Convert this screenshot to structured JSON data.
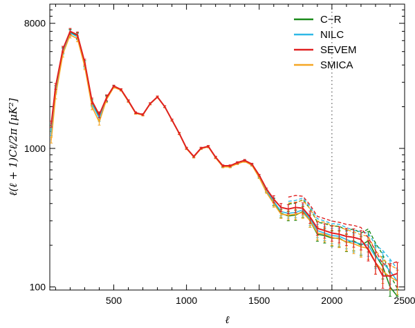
{
  "chart_data": {
    "type": "line",
    "title": "",
    "xlabel": "ℓ",
    "ylabel": "ℓ(ℓ + 1)Cℓ/2π   [μK²]",
    "xlim": [
      60,
      2500
    ],
    "ylim": [
      95,
      11000
    ],
    "y_scale": "log",
    "x_ticks": [
      500,
      1000,
      1500,
      2000,
      2500
    ],
    "y_ticks": [
      100,
      1000,
      8000
    ],
    "legend_position": "top-right",
    "vertical_marker_x": 2000,
    "colors": {
      "C-R": "#1a8a1a",
      "NILC": "#2eb8e6",
      "SEVEM": "#e02020",
      "SMICA": "#f5a623"
    },
    "series": [
      {
        "name": "C−R",
        "x": [
          70,
          100,
          150,
          200,
          250,
          300,
          350,
          400,
          450,
          500,
          550,
          600,
          650,
          700,
          750,
          800,
          850,
          900,
          950,
          1000,
          1050,
          1100,
          1150,
          1200,
          1250,
          1300,
          1350,
          1400,
          1450,
          1500,
          1550,
          1600,
          1650,
          1700,
          1750,
          1800,
          1850,
          1900,
          1950,
          2000,
          2050,
          2100,
          2150,
          2200,
          2250,
          2300,
          2350,
          2400,
          2450
        ],
        "y": [
          1400,
          2700,
          5100,
          6900,
          6500,
          4100,
          2150,
          1700,
          2300,
          2800,
          2650,
          2200,
          1800,
          1750,
          2100,
          2350,
          2000,
          1600,
          1280,
          1000,
          870,
          1000,
          1030,
          860,
          740,
          740,
          780,
          810,
          760,
          620,
          490,
          410,
          340,
          325,
          330,
          350,
          300,
          240,
          235,
          225,
          225,
          210,
          215,
          200,
          215,
          170,
          140,
          100,
          80
        ]
      },
      {
        "name": "NILC",
        "x": [
          70,
          100,
          150,
          200,
          250,
          300,
          350,
          400,
          450,
          500,
          550,
          600,
          650,
          700,
          750,
          800,
          850,
          900,
          950,
          1000,
          1050,
          1100,
          1150,
          1200,
          1250,
          1300,
          1350,
          1400,
          1450,
          1500,
          1550,
          1600,
          1650,
          1700,
          1750,
          1800,
          1850,
          1900,
          1950,
          2000,
          2050,
          2100,
          2150,
          2200,
          2250,
          2300,
          2350,
          2400,
          2450
        ],
        "y": [
          1300,
          2600,
          5000,
          6800,
          6400,
          4000,
          2100,
          1650,
          2280,
          2780,
          2640,
          2190,
          1800,
          1745,
          2095,
          2345,
          2000,
          1600,
          1280,
          1000,
          870,
          1000,
          1030,
          860,
          745,
          745,
          785,
          815,
          765,
          625,
          495,
          415,
          350,
          340,
          345,
          360,
          310,
          255,
          245,
          235,
          232,
          220,
          210,
          205,
          200,
          165,
          150,
          130,
          110
        ]
      },
      {
        "name": "SEVEM",
        "x": [
          70,
          100,
          150,
          200,
          250,
          300,
          350,
          400,
          450,
          500,
          550,
          600,
          650,
          700,
          750,
          800,
          850,
          900,
          950,
          1000,
          1050,
          1100,
          1150,
          1200,
          1250,
          1300,
          1350,
          1400,
          1450,
          1500,
          1550,
          1600,
          1650,
          1700,
          1750,
          1800,
          1850,
          1900,
          1950,
          2000,
          2050,
          2100,
          2150,
          2200,
          2250,
          2300,
          2350,
          2400,
          2450
        ],
        "y": [
          1500,
          2800,
          5200,
          7000,
          6600,
          4200,
          2200,
          1750,
          2320,
          2820,
          2660,
          2210,
          1810,
          1755,
          2105,
          2355,
          2005,
          1605,
          1285,
          1005,
          875,
          1005,
          1035,
          865,
          750,
          750,
          790,
          820,
          770,
          640,
          510,
          430,
          375,
          365,
          375,
          370,
          320,
          265,
          255,
          245,
          240,
          232,
          228,
          220,
          185,
          150,
          120,
          120,
          125
        ]
      },
      {
        "name": "SMICA",
        "x": [
          70,
          100,
          150,
          200,
          250,
          300,
          350,
          400,
          450,
          500,
          550,
          600,
          650,
          700,
          750,
          800,
          850,
          900,
          950,
          1000,
          1050,
          1100,
          1150,
          1200,
          1250,
          1300,
          1350,
          1400,
          1450,
          1500,
          1550,
          1600,
          1650,
          1700,
          1750,
          1800,
          1850,
          1900,
          1950,
          2000,
          2050,
          2100,
          2150,
          2200,
          2250,
          2300,
          2350,
          2400,
          2450
        ],
        "y": [
          1150,
          2400,
          4800,
          6600,
          6200,
          3900,
          2000,
          1550,
          2250,
          2760,
          2630,
          2180,
          1790,
          1740,
          2090,
          2340,
          1995,
          1595,
          1275,
          995,
          865,
          995,
          1025,
          855,
          735,
          735,
          775,
          805,
          755,
          615,
          480,
          400,
          335,
          330,
          335,
          345,
          300,
          245,
          240,
          228,
          222,
          212,
          205,
          195,
          190,
          150,
          130,
          118,
          110
        ]
      }
    ]
  }
}
